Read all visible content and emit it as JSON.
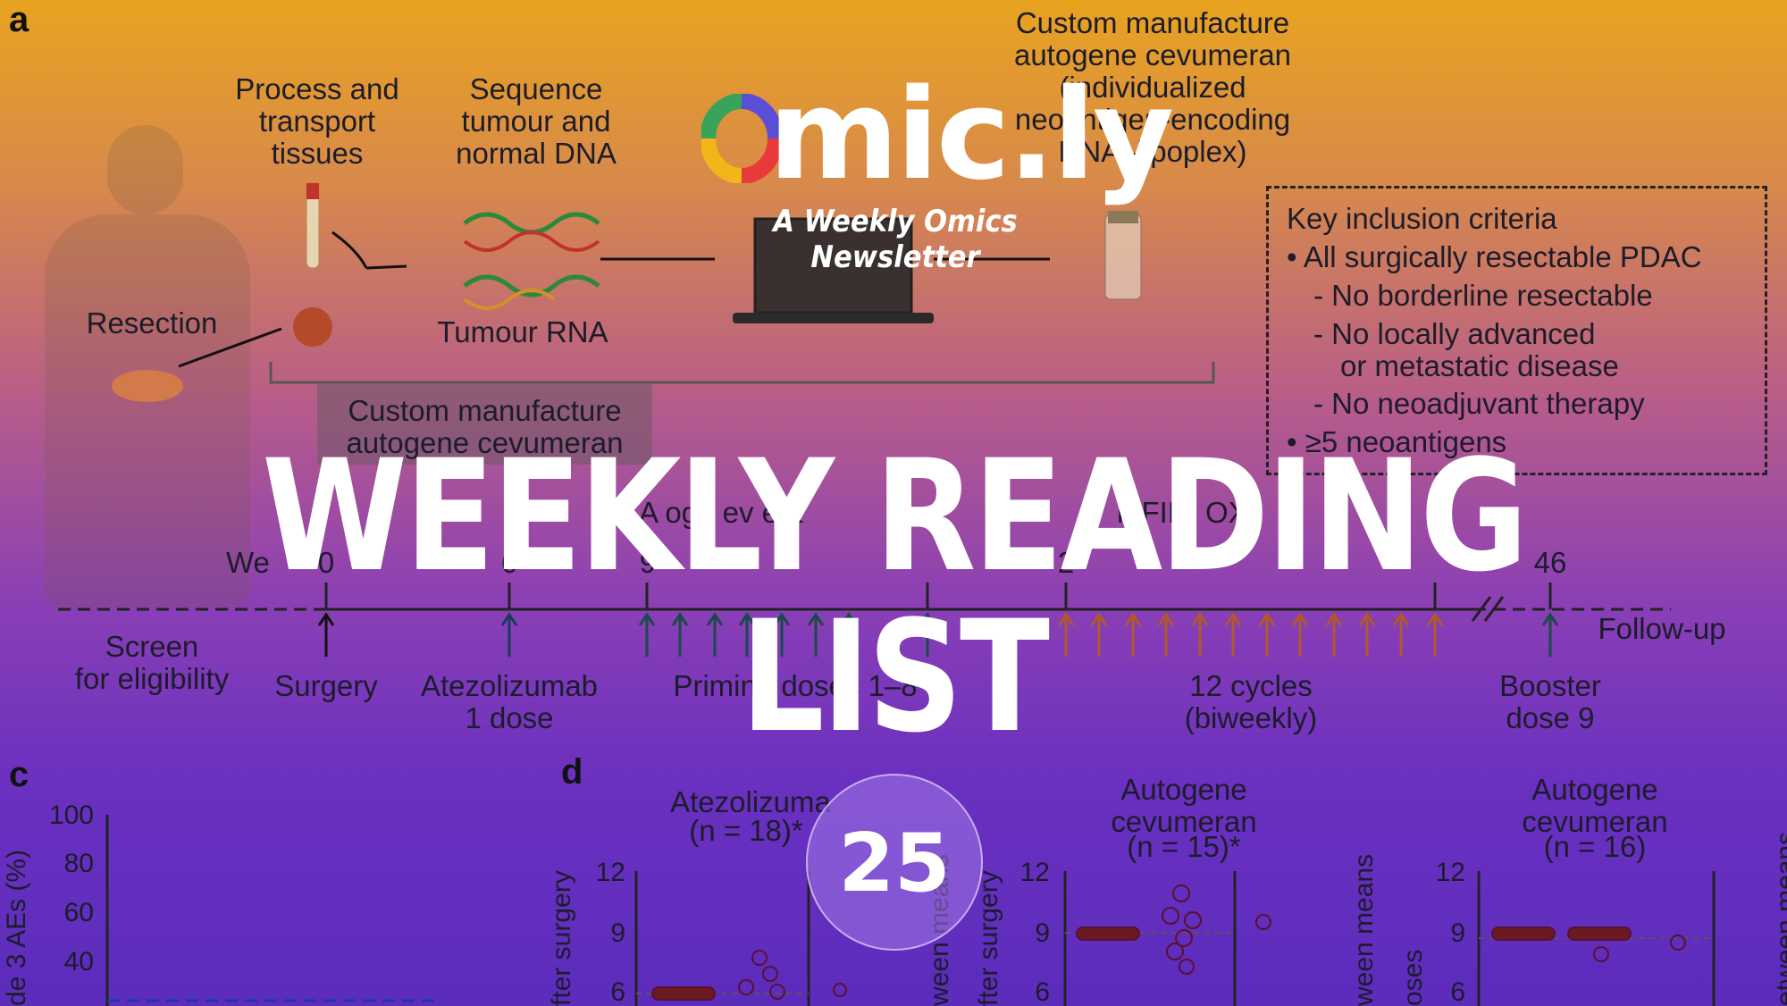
{
  "panels": {
    "a": "a",
    "c": "c",
    "d": "d"
  },
  "figure_a": {
    "process_transport": "Process and\ntransport\ntissues",
    "sequence": "Sequence\ntumour and\nnormal DNA",
    "tumour_rna": "Tumour RNA",
    "resection": "Resection",
    "custom_manufacture_top": "Custom manufacture\nautogene cevumeran\n(individualized\nneoantigen-encoding\nRNA–lipoplex)",
    "custom_manufacture_box": "Custom manufacture\nautogene cevumeran",
    "criteria": {
      "title": "Key inclusion criteria",
      "lines": [
        "• All surgically resectable PDAC",
        "- No borderline resectable",
        "- No locally advanced",
        "or metastatic disease",
        "- No neoadjuvant therapy",
        "• ≥5 neoantigens"
      ]
    }
  },
  "timeline": {
    "week_label": "We",
    "ticks": [
      "0",
      "6",
      "9",
      "",
      "2",
      "",
      "46"
    ],
    "labels": {
      "screen": "Screen\nfor eligibility",
      "surgery": "Surgery",
      "atezolizumab": "Atezolizumab\n1 dose",
      "priming": "Priming doses 1–8",
      "cycles": "12 cycles\n(biweekly)",
      "booster": "Booster\ndose 9",
      "followup": "Follow-up"
    },
    "partial_headers": {
      "autogene": "A  oge    ev   e  a",
      "folfirinox": "   n  FIRI OX"
    }
  },
  "panel_c": {
    "ylabel": "de 3 AEs (%)",
    "yticks": [
      "100",
      "80",
      "60",
      "40"
    ]
  },
  "panel_d": {
    "groups": [
      {
        "title": "Atezolizuma",
        "n": "(n = 18)*"
      },
      {
        "title": "Autogene\ncevumeran",
        "n": "(n = 15)*"
      },
      {
        "title": "Autogene\ncevumeran",
        "n": "(n = 16)"
      }
    ],
    "yticks": [
      "12",
      "9",
      "6"
    ],
    "ylabel_left": "fter surgery",
    "ylabel_between": "ween means",
    "ylabel_doses": "oses",
    "ylabel_between2": "etween means"
  },
  "brand": {
    "name": "mic.ly",
    "tagline": "A Weekly Omics Newsletter",
    "logo_colors": [
      "#e83a3a",
      "#f2b51a",
      "#3aa35a",
      "#5a4fd6"
    ]
  },
  "headline": "WEEKLY READING LIST",
  "issue_number": "25"
}
